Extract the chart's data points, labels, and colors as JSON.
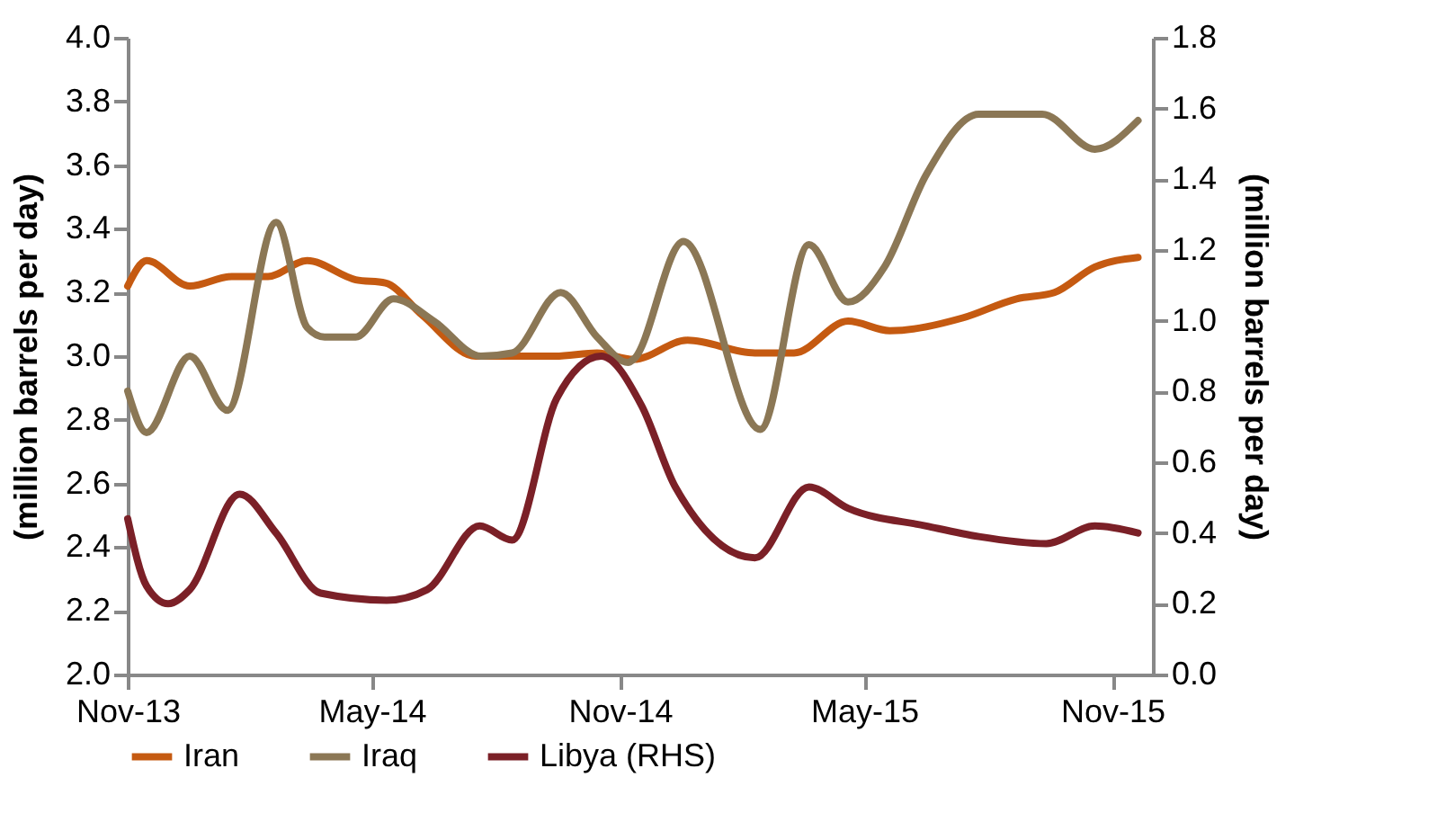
{
  "chart_data": {
    "type": "line",
    "ylabel": "(million barrels per day)",
    "y2label": "(million barrels per day)",
    "xlim": [
      "2013-11",
      "2015-12"
    ],
    "xticks": [
      {
        "value": "2013-11",
        "label": "Nov-13"
      },
      {
        "value": "2014-05",
        "label": "May-14"
      },
      {
        "value": "2014-11",
        "label": "Nov-14"
      },
      {
        "value": "2015-05",
        "label": "May-15"
      },
      {
        "value": "2015-11",
        "label": "Nov-15"
      }
    ],
    "ylim": [
      2.0,
      4.0
    ],
    "yticks": [
      {
        "value": 2.0,
        "label": "2.0"
      },
      {
        "value": 2.2,
        "label": "2.2"
      },
      {
        "value": 2.4,
        "label": "2.4"
      },
      {
        "value": 2.6,
        "label": "2.6"
      },
      {
        "value": 2.8,
        "label": "2.8"
      },
      {
        "value": 3.0,
        "label": "3.0"
      },
      {
        "value": 3.2,
        "label": "3.2"
      },
      {
        "value": 3.4,
        "label": "3.4"
      },
      {
        "value": 3.6,
        "label": "3.6"
      },
      {
        "value": 3.8,
        "label": "3.8"
      },
      {
        "value": 4.0,
        "label": "4.0"
      }
    ],
    "y2lim": [
      0.0,
      1.8
    ],
    "y2ticks": [
      {
        "value": 0.0,
        "label": "0.0"
      },
      {
        "value": 0.2,
        "label": "0.2"
      },
      {
        "value": 0.4,
        "label": "0.4"
      },
      {
        "value": 0.6,
        "label": "0.6"
      },
      {
        "value": 0.8,
        "label": "0.8"
      },
      {
        "value": 1.0,
        "label": "1.0"
      },
      {
        "value": 1.2,
        "label": "1.2"
      },
      {
        "value": 1.4,
        "label": "1.4"
      },
      {
        "value": 1.6,
        "label": "1.6"
      },
      {
        "value": 1.8,
        "label": "1.8"
      }
    ],
    "legend": "bottom",
    "line_style": "solid",
    "series": [
      {
        "name": "Iran",
        "color": "#c55a11",
        "x": [
          "2013-11-01",
          "2013-11-15",
          "2013-12-17",
          "2014-01-17",
          "2014-02-13",
          "2014-03-14",
          "2014-04-19",
          "2014-05-11",
          "2014-06-07",
          "2014-07-17",
          "2014-08-18",
          "2014-09-14",
          "2014-10-15",
          "2014-11-11",
          "2014-12-21",
          "2015-02-09",
          "2015-03-10",
          "2015-04-19",
          "2015-05-20",
          "2015-07-13",
          "2015-08-22",
          "2015-09-19",
          "2015-10-19",
          "2015-11-20"
        ],
        "values": [
          3.22,
          3.3,
          3.22,
          3.25,
          3.25,
          3.3,
          3.24,
          3.23,
          3.13,
          3.0,
          3.0,
          3.0,
          3.01,
          2.99,
          3.05,
          3.01,
          3.01,
          3.11,
          3.08,
          3.12,
          3.18,
          3.2,
          3.28,
          3.31
        ]
      },
      {
        "name": "Iraq",
        "color": "#8b7755",
        "x": [
          "2013-11-01",
          "2013-11-15",
          "2013-12-17",
          "2014-01-14",
          "2014-02-19",
          "2014-03-14",
          "2014-03-27",
          "2014-04-19",
          "2014-05-17",
          "2014-06-16",
          "2014-07-21",
          "2014-08-13",
          "2014-09-18",
          "2014-10-15",
          "2014-11-07",
          "2014-11-11",
          "2014-12-18",
          "2015-02-13",
          "2015-03-21",
          "2015-04-19",
          "2015-05-16",
          "2015-06-16",
          "2015-07-25",
          "2015-09-10",
          "2015-10-19",
          "2015-11-20"
        ],
        "values": [
          2.89,
          2.76,
          3.0,
          2.83,
          3.42,
          3.09,
          3.06,
          3.06,
          3.18,
          3.11,
          3.0,
          3.01,
          3.2,
          3.06,
          2.98,
          2.99,
          3.36,
          2.77,
          3.35,
          3.17,
          3.28,
          3.57,
          3.76,
          3.76,
          3.65,
          3.74
        ]
      },
      {
        "name": "Libya (RHS)",
        "color": "#7b2027",
        "axis": "y2",
        "x": [
          "2013-11-01",
          "2013-11-15",
          "2013-12-01",
          "2013-12-17",
          "2014-01-23",
          "2014-02-19",
          "2014-03-24",
          "2014-05-12",
          "2014-06-11",
          "2014-07-20",
          "2014-08-13",
          "2014-09-15",
          "2014-10-18",
          "2014-11-17",
          "2014-12-12",
          "2015-02-09",
          "2015-03-21",
          "2015-04-19",
          "2015-06-16",
          "2015-07-25",
          "2015-09-13",
          "2015-10-19",
          "2015-11-20"
        ],
        "values": [
          0.44,
          0.25,
          0.2,
          0.24,
          0.51,
          0.4,
          0.23,
          0.21,
          0.24,
          0.42,
          0.38,
          0.78,
          0.9,
          0.76,
          0.53,
          0.33,
          0.53,
          0.47,
          0.42,
          0.39,
          0.37,
          0.42,
          0.4
        ]
      }
    ]
  }
}
